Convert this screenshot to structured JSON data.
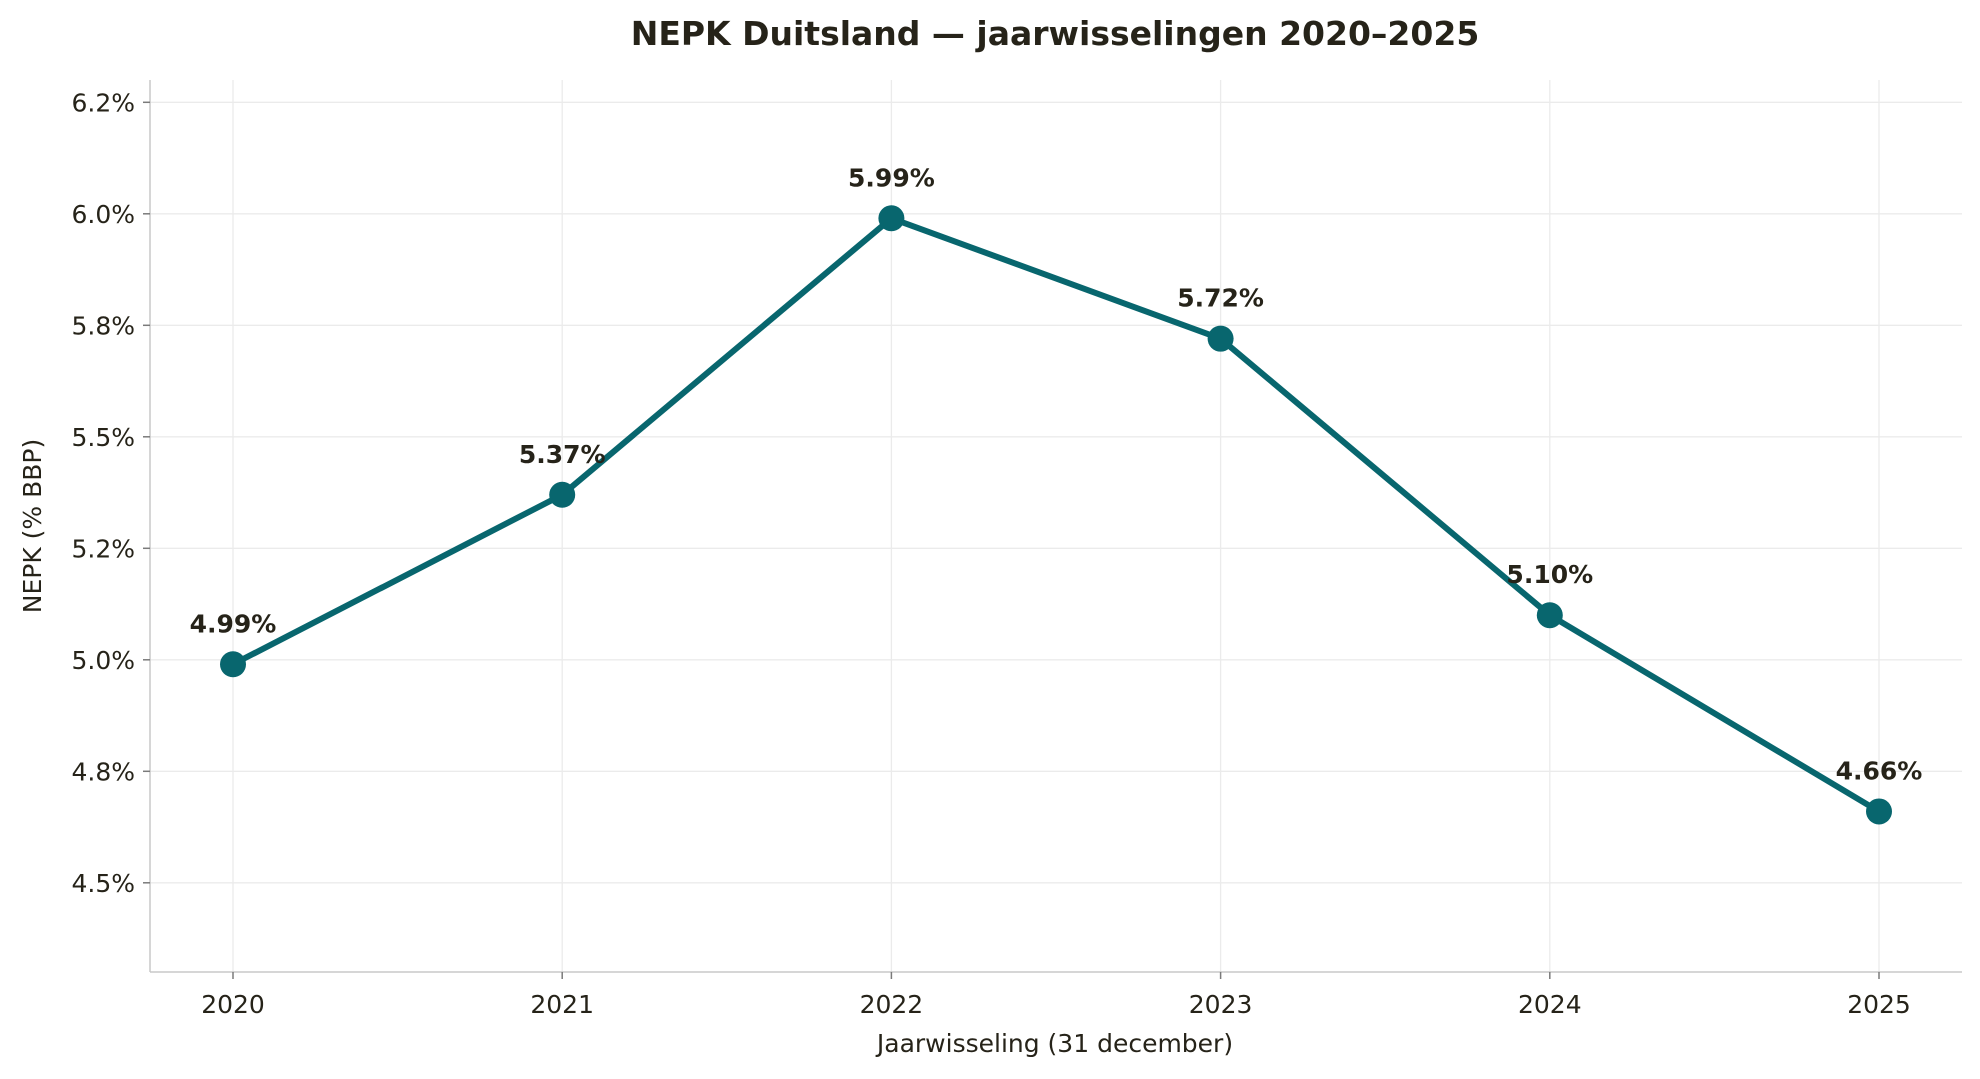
{
  "chart_data": {
    "type": "line",
    "title": "NEPK Duitsland — jaarwisselingen 2020–2025",
    "xlabel": "Jaarwisseling (31 december)",
    "ylabel": "NEPK (% BBP)",
    "categories": [
      "2020",
      "2021",
      "2022",
      "2023",
      "2024",
      "2025"
    ],
    "series": [
      {
        "values": [
          4.99,
          5.37,
          5.99,
          5.72,
          5.1,
          4.66
        ],
        "labels": [
          "4.99%",
          "5.37%",
          "5.99%",
          "5.72%",
          "5.10%",
          "4.66%"
        ],
        "color": "#08666e"
      }
    ],
    "ylim": [
      4.3,
      6.3
    ],
    "yticks": [
      4.5,
      4.75,
      5.0,
      5.25,
      5.5,
      5.75,
      6.0,
      6.25
    ],
    "ytick_labels": [
      "4.5%",
      "4.8%",
      "5.0%",
      "5.2%",
      "5.5%",
      "5.8%",
      "6.0%",
      "6.2%"
    ],
    "grid": true,
    "legend": "none"
  }
}
